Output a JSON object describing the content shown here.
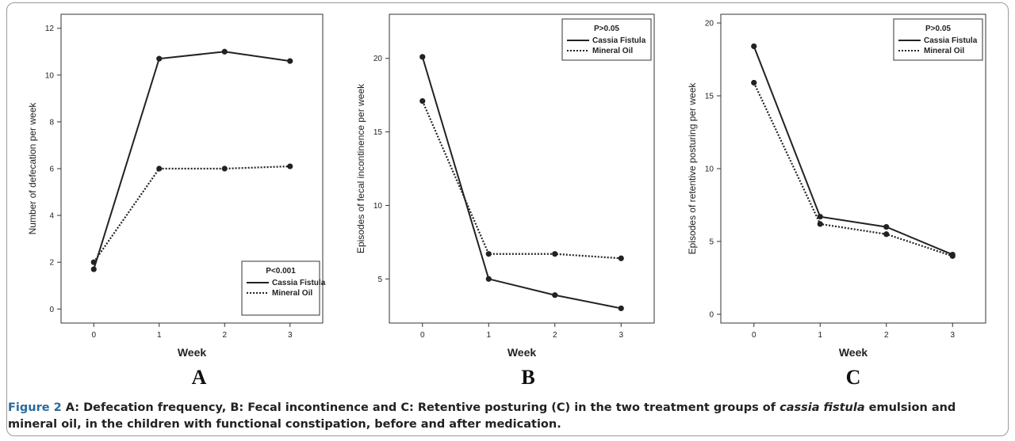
{
  "chart_data": [
    {
      "type": "line",
      "panel_label": "A",
      "xlabel": "Week",
      "ylabel": "Number of defecation per week",
      "x": [
        0,
        1,
        2,
        3
      ],
      "xticks": [
        "0",
        "1",
        "2",
        "3"
      ],
      "ylim": [
        -0.6,
        12.6
      ],
      "yticks": [
        0,
        2,
        4,
        6,
        8,
        10,
        12
      ],
      "xlim": [
        -0.5,
        3.5
      ],
      "legend": {
        "title": "P<0.001",
        "placement": "bottom-right"
      },
      "series": [
        {
          "name": "Cassia Fistula",
          "style": "solid",
          "values": [
            1.7,
            10.7,
            11.0,
            10.6
          ]
        },
        {
          "name": "Mineral Oil",
          "style": "dotted",
          "values": [
            2.0,
            6.0,
            6.0,
            6.1
          ]
        }
      ]
    },
    {
      "type": "line",
      "panel_label": "B",
      "xlabel": "Week",
      "ylabel": "Episodes of fecal incontinence per week",
      "x": [
        0,
        1,
        2,
        3
      ],
      "xticks": [
        "0",
        "1",
        "2",
        "3"
      ],
      "ylim": [
        2.0,
        23.0
      ],
      "yticks": [
        5,
        10,
        15,
        20
      ],
      "xlim": [
        -0.5,
        3.5
      ],
      "legend": {
        "title": "P>0.05",
        "placement": "top-right"
      },
      "series": [
        {
          "name": "Cassia Fistula",
          "style": "solid",
          "values": [
            20.1,
            5.0,
            3.9,
            3.0
          ]
        },
        {
          "name": "Mineral Oil",
          "style": "dotted",
          "values": [
            17.1,
            6.7,
            6.7,
            6.4
          ]
        }
      ]
    },
    {
      "type": "line",
      "panel_label": "C",
      "xlabel": "Week",
      "ylabel": "Episodes of retentive posturing per week",
      "x": [
        0,
        1,
        2,
        3
      ],
      "xticks": [
        "0",
        "1",
        "2",
        "3"
      ],
      "ylim": [
        -0.6,
        20.6
      ],
      "yticks": [
        0,
        5,
        10,
        15,
        20
      ],
      "xlim": [
        -0.5,
        3.5
      ],
      "legend": {
        "title": "P>0.05",
        "placement": "top-right"
      },
      "series": [
        {
          "name": "Cassia Fistula",
          "style": "solid",
          "values": [
            18.4,
            6.7,
            6.0,
            4.1
          ]
        },
        {
          "name": "Mineral Oil",
          "style": "dotted",
          "values": [
            15.9,
            6.2,
            5.5,
            4.0
          ]
        }
      ]
    }
  ],
  "caption": {
    "label": "Figure 2",
    "text_before": " A: Defecation frequency, B: Fecal incontinence and C: Retentive posturing (C) in the two treatment groups of ",
    "italic": "cassia fistula",
    "text_after": " emulsion and mineral oil, in the children with functional constipation, before and after medication."
  }
}
